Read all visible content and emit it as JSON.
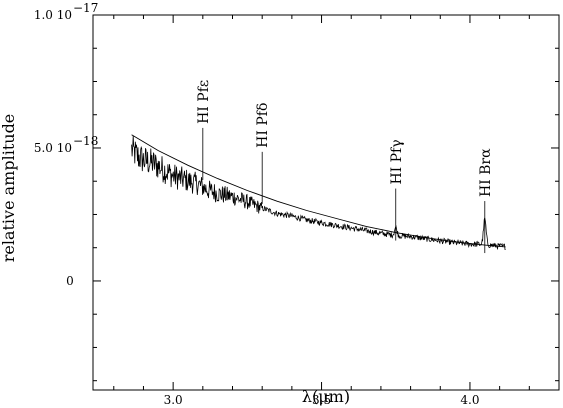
{
  "chart_data": {
    "type": "line",
    "xlabel": "λ(μm)",
    "ylabel": "relative amplitude",
    "xlim": [
      2.73,
      4.3
    ],
    "ylim": [
      -4.1e-18,
      1e-17
    ],
    "grid": false,
    "x_ticks": [
      {
        "value": 3.0,
        "label": "3.0"
      },
      {
        "value": 3.5,
        "label": "3.5"
      },
      {
        "value": 4.0,
        "label": "4.0"
      }
    ],
    "y_ticks": [
      {
        "value": 0,
        "label": "0",
        "exponent": ""
      },
      {
        "value": 5e-18,
        "label": "5.0 10",
        "exponent": "−18"
      },
      {
        "value": 1e-17,
        "label": "1.0 10",
        "exponent": "−17"
      }
    ],
    "series": [
      {
        "style": "noisy",
        "x": [
          2.86,
          2.88,
          2.9,
          2.93,
          2.96,
          3.0,
          3.04,
          3.08,
          3.12,
          3.16,
          3.2,
          3.25,
          3.3,
          3.35,
          3.4,
          3.45,
          3.5,
          3.55,
          3.6,
          3.65,
          3.7,
          3.75,
          3.8,
          3.85,
          3.9,
          3.95,
          4.0,
          4.05,
          4.1,
          4.12
        ],
        "y": [
          5e-18,
          4.75e-18,
          4.6e-18,
          4.5e-18,
          4.3e-18,
          4e-18,
          3.85e-18,
          3.7e-18,
          3.45e-18,
          3.3e-18,
          3.2e-18,
          3e-18,
          2.75e-18,
          2.55e-18,
          2.45e-18,
          2.3e-18,
          2.2e-18,
          2.1e-18,
          2e-18,
          1.9e-18,
          1.8e-18,
          1.72e-18,
          1.68e-18,
          1.6e-18,
          1.52e-18,
          1.45e-18,
          1.4e-18,
          1.38e-18,
          1.32e-18,
          1.3e-18
        ]
      },
      {
        "style": "smooth",
        "x": [
          2.86,
          2.95,
          3.05,
          3.15,
          3.25,
          3.35,
          3.45,
          3.55,
          3.65,
          3.75,
          3.85,
          3.95,
          4.05,
          4.12
        ],
        "y": [
          5.5e-18,
          4.9e-18,
          4.35e-18,
          3.85e-18,
          3.4e-18,
          3e-18,
          2.65e-18,
          2.35e-18,
          2.05e-18,
          1.82e-18,
          1.63e-18,
          1.47e-18,
          1.35e-18,
          1.28e-18
        ]
      }
    ],
    "line_annotations": [
      {
        "label": "HI Pfε",
        "x": 3.1
      },
      {
        "label": "HI Pfδ",
        "x": 3.3
      },
      {
        "label": "HI Pfγ",
        "x": 3.75
      },
      {
        "label": "HI Brα",
        "x": 4.05
      }
    ],
    "emission_peaks": [
      {
        "x": 3.75,
        "height": 3e-19
      },
      {
        "x": 4.05,
        "height": 9.5e-19
      }
    ]
  }
}
